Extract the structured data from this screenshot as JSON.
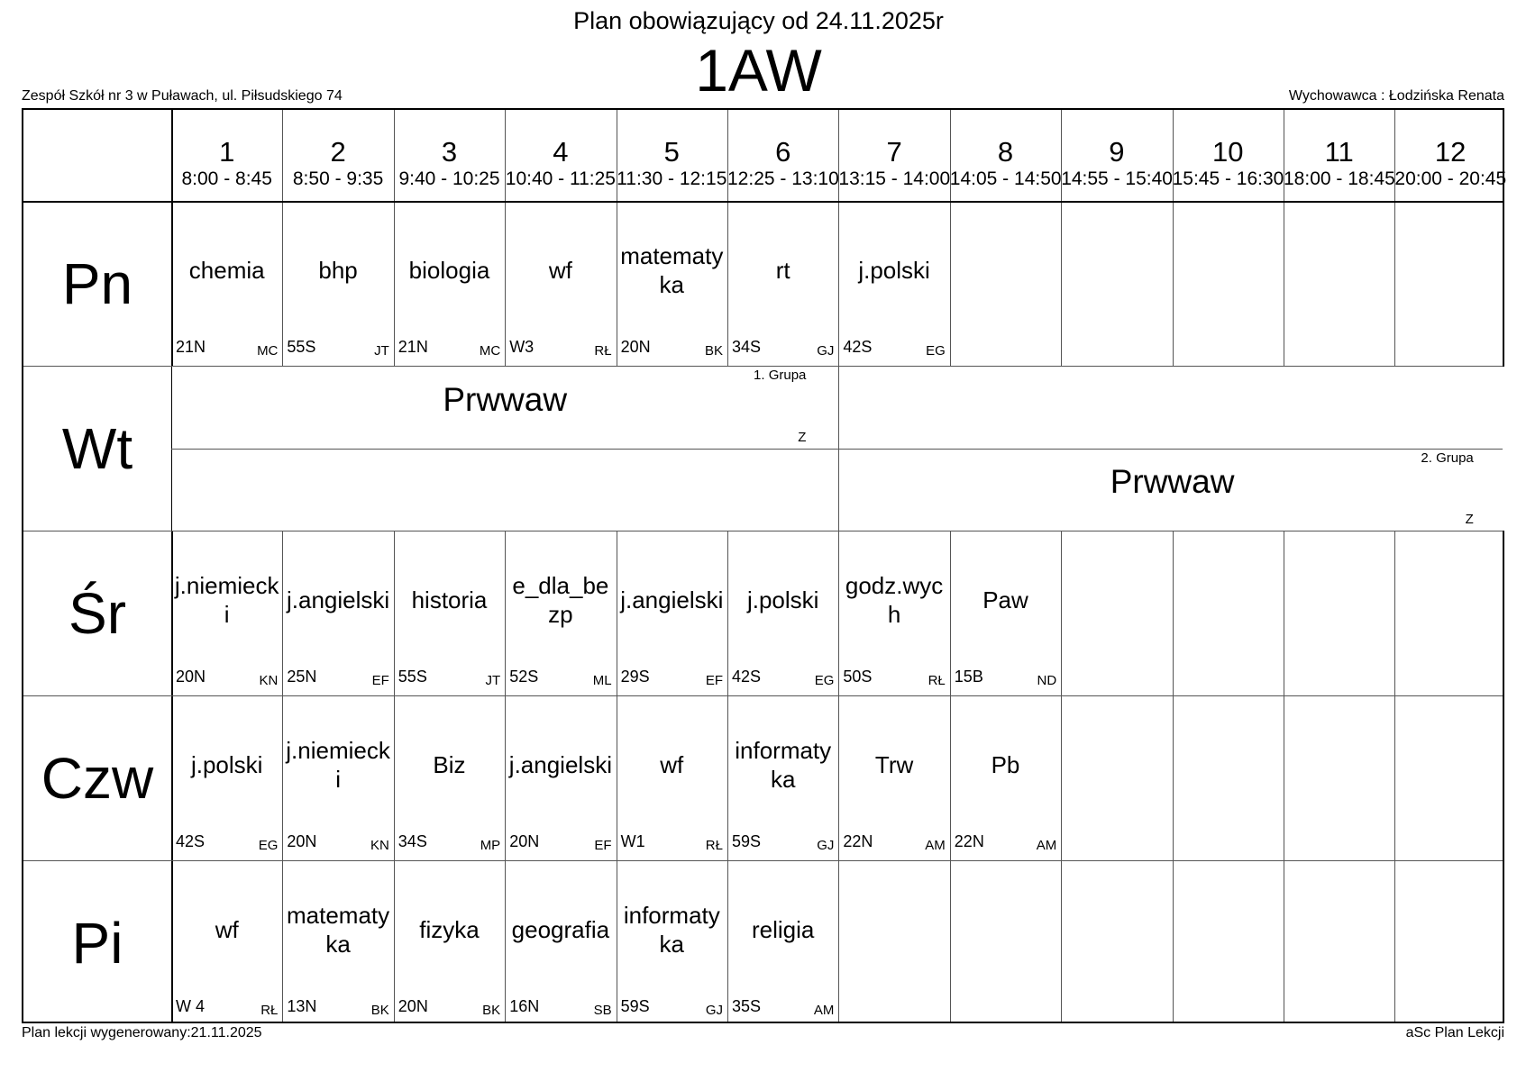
{
  "header": {
    "title": "Plan obowiązujący od 24.11.2025r",
    "class_name": "1AW",
    "school": "Zespół Szkół nr 3 w Puławach, ul. Piłsudskiego 74",
    "tutor": "Wychowawca : Łodzińska Renata"
  },
  "footer": {
    "generated": "Plan lekcji wygenerowany:21.11.2025",
    "software": "aSc Plan Lekcji"
  },
  "periods": [
    {
      "num": "1",
      "time": "8:00 - 8:45"
    },
    {
      "num": "2",
      "time": "8:50 - 9:35"
    },
    {
      "num": "3",
      "time": "9:40 - 10:25"
    },
    {
      "num": "4",
      "time": "10:40 - 11:25"
    },
    {
      "num": "5",
      "time": "11:30 - 12:15"
    },
    {
      "num": "6",
      "time": "12:25 - 13:10"
    },
    {
      "num": "7",
      "time": "13:15 - 14:00"
    },
    {
      "num": "8",
      "time": "14:05 - 14:50"
    },
    {
      "num": "9",
      "time": "14:55 - 15:40"
    },
    {
      "num": "10",
      "time": "15:45 - 16:30"
    },
    {
      "num": "11",
      "time": "18:00 - 18:45"
    },
    {
      "num": "12",
      "time": "20:00 - 20:45"
    }
  ],
  "days": [
    {
      "label": "Pn",
      "lessons": [
        {
          "subject": "chemia",
          "room": "21N",
          "teacher": "MC"
        },
        {
          "subject": "bhp",
          "room": "55S",
          "teacher": "JT"
        },
        {
          "subject": "biologia",
          "room": "21N",
          "teacher": "MC"
        },
        {
          "subject": "wf",
          "room": "W3",
          "teacher": "RŁ"
        },
        {
          "subject": "matematyka",
          "room": "20N",
          "teacher": "BK"
        },
        {
          "subject": "rt",
          "room": "34S",
          "teacher": "GJ"
        },
        {
          "subject": "j.polski",
          "room": "42S",
          "teacher": "EG"
        }
      ]
    },
    {
      "label": "Wt",
      "groups": [
        {
          "group": "1. Grupa",
          "subject": "Prwwaw",
          "teacher": "Z",
          "from": 1,
          "to": 6
        },
        {
          "group": "2. Grupa",
          "subject": "Prwwaw",
          "teacher": "Z",
          "from": 7,
          "to": 12
        }
      ]
    },
    {
      "label": "Śr",
      "lessons": [
        {
          "subject": "j.niemiecki",
          "room": "20N",
          "teacher": "KN"
        },
        {
          "subject": "j.angielski",
          "room": "25N",
          "teacher": "EF"
        },
        {
          "subject": "historia",
          "room": "55S",
          "teacher": "JT"
        },
        {
          "subject": "e_dla_bezp",
          "room": "52S",
          "teacher": "ML"
        },
        {
          "subject": "j.angielski",
          "room": "29S",
          "teacher": "EF"
        },
        {
          "subject": "j.polski",
          "room": "42S",
          "teacher": "EG"
        },
        {
          "subject": "godz.wych",
          "room": "50S",
          "teacher": "RŁ"
        },
        {
          "subject": "Paw",
          "room": "15B",
          "teacher": "ND"
        }
      ]
    },
    {
      "label": "Czw",
      "lessons": [
        {
          "subject": "j.polski",
          "room": "42S",
          "teacher": "EG"
        },
        {
          "subject": "j.niemiecki",
          "room": "20N",
          "teacher": "KN"
        },
        {
          "subject": "Biz",
          "room": "34S",
          "teacher": "MP"
        },
        {
          "subject": "j.angielski",
          "room": "20N",
          "teacher": "EF"
        },
        {
          "subject": "wf",
          "room": "W1",
          "teacher": "RŁ"
        },
        {
          "subject": "informatyka",
          "room": "59S",
          "teacher": "GJ"
        },
        {
          "subject": "Trw",
          "room": "22N",
          "teacher": "AM"
        },
        {
          "subject": "Pb",
          "room": "22N",
          "teacher": "AM"
        }
      ]
    },
    {
      "label": "Pi",
      "lessons": [
        {
          "subject": "wf",
          "room": "W 4",
          "teacher": "RŁ"
        },
        {
          "subject": "matematyka",
          "room": "13N",
          "teacher": "BK"
        },
        {
          "subject": "fizyka",
          "room": "20N",
          "teacher": "BK"
        },
        {
          "subject": "geografia",
          "room": "16N",
          "teacher": "SB"
        },
        {
          "subject": "informatyka",
          "room": "59S",
          "teacher": "GJ"
        },
        {
          "subject": "religia",
          "room": "35S",
          "teacher": "AM"
        }
      ]
    }
  ]
}
